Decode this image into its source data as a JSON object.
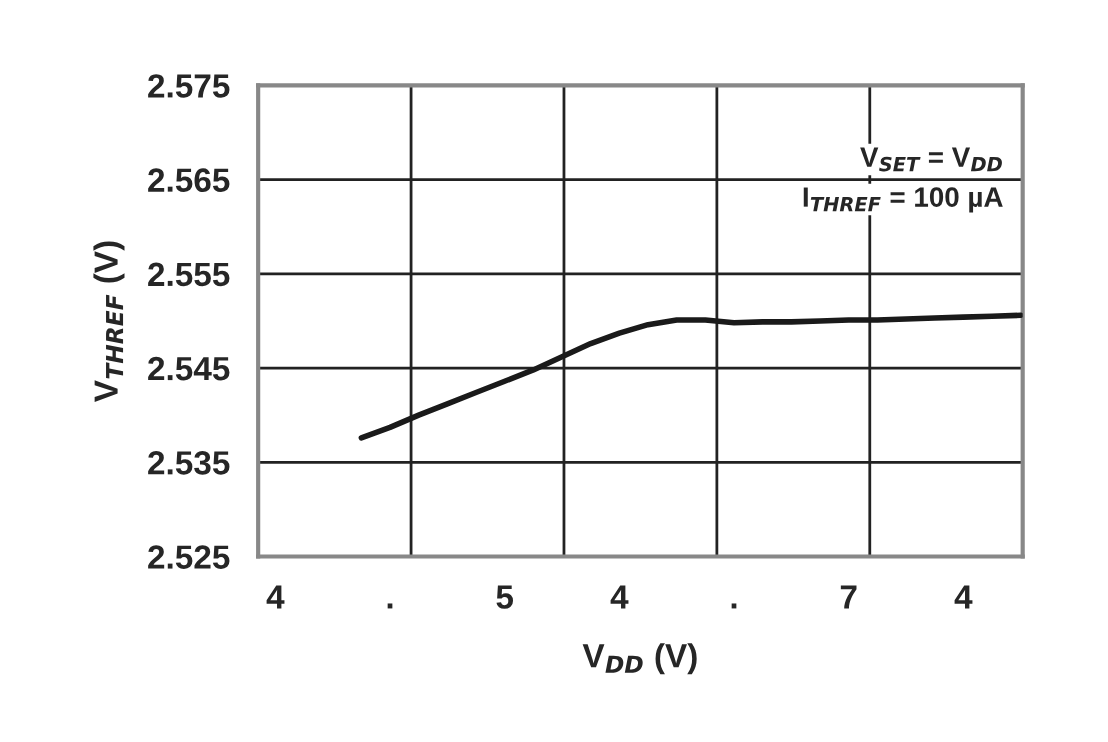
{
  "chart_data": {
    "type": "line",
    "xlabel": "V$_{DD}$ (V)",
    "ylabel": "V$_{THREF}$ (V)",
    "annotations": [
      "V$_{SET}$ = V$_{DD}$",
      "I$_{THREF}$ = 100 µA"
    ],
    "categories": [
      "4",
      null,
      null,
      null,
      ".",
      null,
      null,
      null,
      "5",
      null,
      null,
      null,
      "4",
      null,
      null,
      null,
      ".",
      null,
      null,
      null,
      "7",
      null,
      null,
      null,
      "4",
      null,
      null
    ],
    "series": [
      {
        "color": "#1a1a1a",
        "values": [
          null,
          null,
          null,
          2.5376,
          2.5387,
          2.54,
          2.5412,
          2.5424,
          2.5436,
          2.5448,
          2.5462,
          2.5476,
          2.5487,
          2.5496,
          2.5501,
          2.5501,
          2.5498,
          2.5499,
          2.5499,
          2.55,
          2.5501,
          2.5501,
          2.5502,
          2.5503,
          2.5504,
          2.5505,
          2.5506
        ]
      }
    ],
    "ylim": [
      2.525,
      2.575
    ],
    "yticks": [
      2.525,
      2.535,
      2.545,
      2.555,
      2.565,
      2.575
    ],
    "grid": true,
    "line_style": "solid",
    "marker": "none"
  }
}
